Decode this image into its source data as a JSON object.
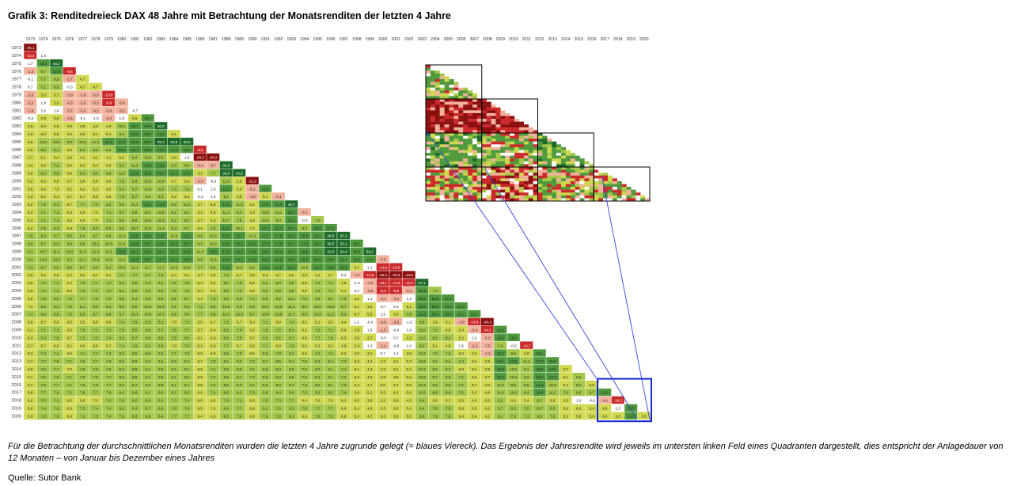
{
  "title": "Grafik 3: Renditedreieck DAX 48 Jahre mit Betrachtung der Monatsrenditen der letzten 4 Jahre",
  "caption": "Für die Betrachtung der durchschnittlichen Monatsrenditen wurden die letzten 4 Jahre zugrunde gelegt (= blaues Viereck). Das Ergebnis der Jahresrendite wird jeweils im untersten linken Feld eines Quadranten dargestellt, dies entspricht der Anlagedauer von 12 Monaten – von Januar bis Dezember eines Jahres",
  "source": "Quelle: Sutor Bank",
  "colors": {
    "dark_green": "#1f6b2a",
    "green": "#4f9a3c",
    "light_green": "#a6c84a",
    "yellow_green": "#cfd84e",
    "white": "#ffffff",
    "salmon": "#f2b19c",
    "red": "#cc2a2a",
    "dark_red": "#8b1010",
    "highlight_blue": "#1428d2"
  },
  "chart_data": {
    "type": "heatmap",
    "title": "Renditedreieck DAX 48 Jahre",
    "x_labels": [
      "1973",
      "1974",
      "1975",
      "1976",
      "1977",
      "1978",
      "1979",
      "1980",
      "1981",
      "1982",
      "1983",
      "1984",
      "1985",
      "1986",
      "1987",
      "1988",
      "1989",
      "1990",
      "1991",
      "1992",
      "1993",
      "1994",
      "1995",
      "1996",
      "1997",
      "1998",
      "1999",
      "2000",
      "2001",
      "2002",
      "2003",
      "2004",
      "2005",
      "2006",
      "2007",
      "2008",
      "2009",
      "2010",
      "2011",
      "2012",
      "2013",
      "2014",
      "2015",
      "2016",
      "2017",
      "2018",
      "2019",
      "2020"
    ],
    "y_labels": [
      "1973",
      "1974",
      "1975",
      "1976",
      "1977",
      "1978",
      "1979",
      "1980",
      "1981",
      "1982",
      "1983",
      "1984",
      "1985",
      "1986",
      "1987",
      "1988",
      "1989",
      "1990",
      "1991",
      "1992",
      "1993",
      "1994",
      "1995",
      "1996",
      "1997",
      "1998",
      "1999",
      "2000",
      "2001",
      "2002",
      "2003",
      "2004",
      "2005",
      "2006",
      "2007",
      "2008",
      "2009",
      "2010",
      "2011",
      "2012",
      "2013",
      "2014",
      "2015",
      "2016",
      "2017",
      "2018",
      "2019",
      "2020"
    ],
    "annual_returns_diagonal": [
      -26.1,
      1.4,
      40.2,
      -9.6,
      4.7,
      4.7,
      -13.8,
      -5.8,
      -0.7,
      12.7,
      40.0,
      6.1,
      66.4,
      -8.8,
      -30.2,
      32.8,
      34.8,
      -21.9,
      12.9,
      -2.1,
      46.7,
      -7.1,
      7.0,
      27.4,
      47.1,
      18.7,
      39.1,
      -7.5,
      -19.8,
      -43.9,
      37.1,
      7.3,
      27.1,
      22.0,
      22.3,
      -40.4,
      23.8,
      16.1,
      -14.7,
      29.1,
      25.5,
      2.7,
      9.6,
      6.9,
      12.5,
      -18.3,
      25.5,
      3.5
    ],
    "zoom_grid": {
      "start_year": 2017,
      "end_year": 2020,
      "months": 48,
      "description_labels": []
    }
  }
}
